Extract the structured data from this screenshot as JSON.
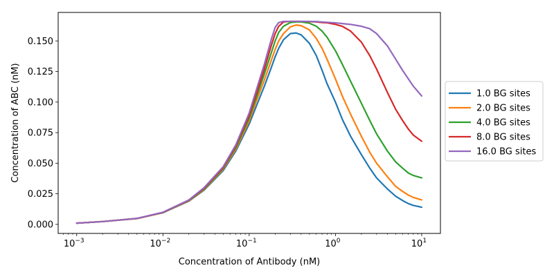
{
  "chart_data": {
    "type": "line",
    "xlabel": "Concentration of Antibody (nM)",
    "ylabel": "Concentration of ABC (nM)",
    "xscale": "log",
    "xlim": [
      0.00061,
      16.5
    ],
    "ylim": [
      -0.0074,
      0.1733
    ],
    "x_ticks": [
      {
        "value": 0.001,
        "base": "10",
        "exp": "−3"
      },
      {
        "value": 0.01,
        "base": "10",
        "exp": "−2"
      },
      {
        "value": 0.1,
        "base": "10",
        "exp": "−1"
      },
      {
        "value": 1,
        "base": "10",
        "exp": "0"
      },
      {
        "value": 10,
        "base": "10",
        "exp": "1"
      }
    ],
    "y_ticks": [
      {
        "value": 0.0,
        "label": "0.000"
      },
      {
        "value": 0.025,
        "label": "0.025"
      },
      {
        "value": 0.05,
        "label": "0.050"
      },
      {
        "value": 0.075,
        "label": "0.075"
      },
      {
        "value": 0.1,
        "label": "0.100"
      },
      {
        "value": 0.125,
        "label": "0.125"
      },
      {
        "value": 0.15,
        "label": "0.150"
      }
    ],
    "grid": false,
    "legend_position": "right, outside axes",
    "x": [
      0.001,
      0.002,
      0.005,
      0.01,
      0.02,
      0.03,
      0.05,
      0.07,
      0.1,
      0.12,
      0.15,
      0.18,
      0.2,
      0.22,
      0.25,
      0.3,
      0.35,
      0.4,
      0.5,
      0.6,
      0.7,
      0.8,
      1.0,
      1.2,
      1.5,
      2.0,
      2.5,
      3.0,
      4.0,
      5.0,
      6.0,
      7.0,
      8.0,
      10.0
    ],
    "series": [
      {
        "name": "1.0 BG sites",
        "color": "#1f77b4",
        "values": [
          0.001,
          0.0023,
          0.0048,
          0.0095,
          0.019,
          0.028,
          0.044,
          0.06,
          0.082,
          0.096,
          0.113,
          0.128,
          0.137,
          0.144,
          0.151,
          0.156,
          0.1565,
          0.155,
          0.148,
          0.138,
          0.126,
          0.115,
          0.1,
          0.086,
          0.072,
          0.057,
          0.046,
          0.038,
          0.029,
          0.023,
          0.0195,
          0.017,
          0.0155,
          0.014
        ]
      },
      {
        "name": "2.0 BG sites",
        "color": "#ff7f0e",
        "values": [
          0.001,
          0.0023,
          0.0048,
          0.0096,
          0.0193,
          0.0285,
          0.045,
          0.0615,
          0.0845,
          0.1,
          0.118,
          0.134,
          0.143,
          0.15,
          0.156,
          0.1615,
          0.163,
          0.1625,
          0.159,
          0.152,
          0.144,
          0.135,
          0.119,
          0.105,
          0.09,
          0.072,
          0.059,
          0.05,
          0.039,
          0.031,
          0.027,
          0.024,
          0.022,
          0.02
        ]
      },
      {
        "name": "4.0 BG sites",
        "color": "#2ca02c",
        "values": [
          0.001,
          0.0023,
          0.0048,
          0.0097,
          0.0196,
          0.029,
          0.0458,
          0.0628,
          0.0868,
          0.103,
          0.123,
          0.14,
          0.15,
          0.157,
          0.162,
          0.165,
          0.1655,
          0.1655,
          0.1645,
          0.162,
          0.158,
          0.153,
          0.142,
          0.131,
          0.117,
          0.099,
          0.085,
          0.074,
          0.06,
          0.051,
          0.046,
          0.042,
          0.04,
          0.038
        ]
      },
      {
        "name": "8.0 BG sites",
        "color": "#d62728",
        "values": [
          0.001,
          0.0023,
          0.0048,
          0.0098,
          0.0198,
          0.0295,
          0.0465,
          0.064,
          0.089,
          0.106,
          0.127,
          0.146,
          0.156,
          0.162,
          0.1655,
          0.166,
          0.166,
          0.166,
          0.1658,
          0.1655,
          0.165,
          0.1648,
          0.1635,
          0.162,
          0.158,
          0.149,
          0.138,
          0.127,
          0.108,
          0.094,
          0.085,
          0.078,
          0.073,
          0.068
        ]
      },
      {
        "name": "16.0 BG sites",
        "color": "#9467bd",
        "values": [
          0.001,
          0.0023,
          0.0049,
          0.0099,
          0.02,
          0.03,
          0.0472,
          0.065,
          0.091,
          0.109,
          0.131,
          0.151,
          0.161,
          0.165,
          0.166,
          0.166,
          0.166,
          0.166,
          0.166,
          0.1658,
          0.1655,
          0.1652,
          0.1648,
          0.1642,
          0.1635,
          0.162,
          0.16,
          0.156,
          0.146,
          0.135,
          0.126,
          0.119,
          0.113,
          0.105
        ]
      }
    ]
  }
}
